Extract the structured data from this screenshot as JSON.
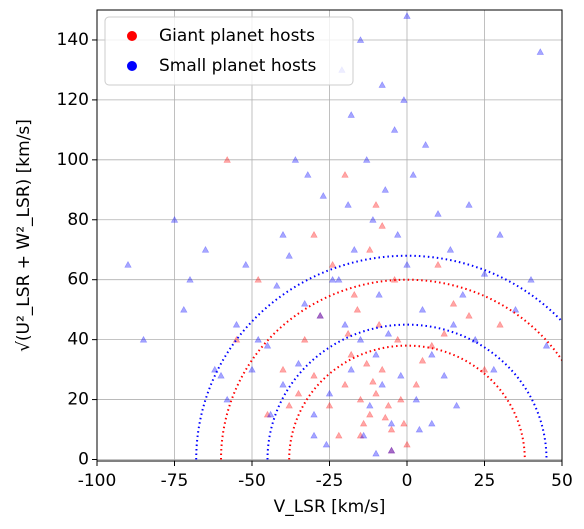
{
  "chart_data": {
    "type": "scatter",
    "xlabel": "V_LSR [km/s]",
    "ylabel": "√(U²_LSR + W²_LSR) [km/s]",
    "xlim": [
      -100,
      50
    ],
    "ylim": [
      -0.5,
      150
    ],
    "xticks": [
      -100,
      -75,
      -50,
      -25,
      0,
      25,
      50
    ],
    "yticks": [
      0,
      20,
      40,
      60,
      80,
      100,
      120,
      140
    ],
    "grid": true,
    "legend": "upper left",
    "series": [
      {
        "name": "Giant planet hosts",
        "color": "#ff0000",
        "x": [
          -15,
          -12,
          -8,
          -20,
          -5,
          -18,
          -10,
          -3,
          -25,
          -14,
          -9,
          -30,
          -2,
          5,
          -22,
          -16,
          -11,
          -7,
          -35,
          0,
          8,
          -13,
          -19,
          -6,
          -28,
          3,
          -40,
          12,
          -17,
          -4,
          -24,
          -1,
          15,
          -45,
          -33,
          -12,
          20,
          -8,
          -55,
          -58,
          -20,
          -10,
          -30,
          25,
          10,
          -15,
          -5,
          -48,
          30,
          -38
        ],
        "values": [
          20,
          15,
          30,
          25,
          10,
          35,
          22,
          40,
          18,
          12,
          45,
          28,
          20,
          33,
          8,
          50,
          26,
          14,
          22,
          5,
          38,
          32,
          42,
          18,
          48,
          25,
          30,
          42,
          55,
          60,
          65,
          12,
          52,
          15,
          40,
          70,
          48,
          78,
          40,
          100,
          95,
          85,
          75,
          30,
          65,
          8,
          3,
          60,
          45,
          18
        ]
      },
      {
        "name": "Small planet hosts",
        "color": "#0000ff",
        "x": [
          -12,
          -8,
          -18,
          -5,
          -25,
          -15,
          -10,
          -2,
          -30,
          3,
          -20,
          -35,
          5,
          -14,
          -9,
          -40,
          8,
          -22,
          -6,
          12,
          -28,
          -45,
          0,
          -17,
          15,
          -50,
          -11,
          -3,
          18,
          -33,
          -60,
          -24,
          22,
          -7,
          -38,
          10,
          -55,
          -13,
          25,
          -65,
          -19,
          -4,
          30,
          -42,
          2,
          -70,
          -27,
          -1,
          35,
          -48,
          6,
          -75,
          -15,
          14,
          40,
          -32,
          -8,
          20,
          -52,
          -36,
          -21,
          -85,
          -62,
          28,
          -10,
          -44,
          4,
          -58,
          16,
          -26,
          45,
          -72,
          -5,
          -30,
          8,
          -18,
          -40,
          0,
          -90,
          43
        ],
        "values": [
          18,
          25,
          30,
          12,
          22,
          40,
          35,
          28,
          15,
          20,
          45,
          32,
          50,
          8,
          55,
          25,
          35,
          60,
          42,
          28,
          48,
          38,
          65,
          70,
          45,
          30,
          80,
          75,
          55,
          52,
          28,
          60,
          40,
          90,
          68,
          82,
          45,
          100,
          62,
          70,
          85,
          110,
          75,
          58,
          95,
          60,
          88,
          120,
          50,
          40,
          105,
          80,
          140,
          70,
          60,
          95,
          125,
          85,
          65,
          100,
          130,
          40,
          30,
          30,
          2,
          15,
          10,
          20,
          18,
          5,
          38,
          50,
          3,
          8,
          12,
          115,
          75,
          148,
          65,
          136
        ]
      }
    ],
    "curves": [
      {
        "color": "#ff0000",
        "radius": 38
      },
      {
        "color": "#0000ff",
        "radius": 45
      },
      {
        "color": "#ff0000",
        "radius": 60
      },
      {
        "color": "#0000ff",
        "radius": 68
      }
    ]
  }
}
